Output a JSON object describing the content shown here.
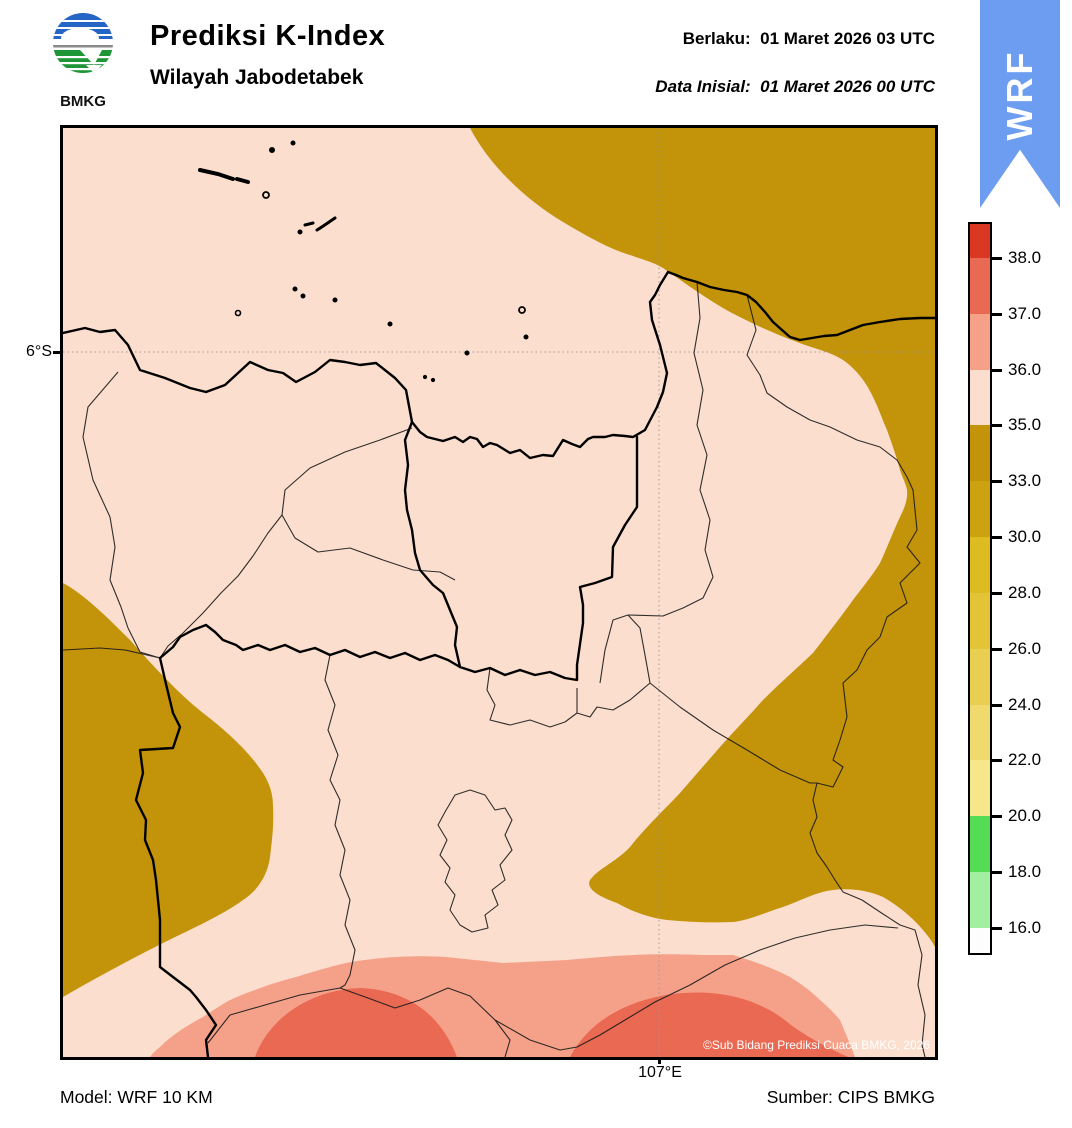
{
  "header": {
    "logo_text": "BMKG",
    "title": "Prediksi K-Index",
    "subtitle": "Wilayah Jabodetabek",
    "valid_label": "Berlaku:",
    "valid_value": "01 Maret 2026 03 UTC",
    "init_label": "Data Inisial:",
    "init_value": "01 Maret 2026 00 UTC",
    "ribbon_text": "WRF"
  },
  "map": {
    "lat_label": "6°S",
    "lon_label": "107°E",
    "copyright": "©Sub Bidang Prediksi Cuaca BMKG, 2026",
    "colors": {
      "background_35_36": "#FBDECD",
      "gold_33_35": "#C3930A",
      "salmon_36_37": "#F5A189",
      "red_37_38": "#E96952",
      "coastline": "#000000",
      "admin_thin": "#1a1a1a",
      "gridline": "#999999"
    }
  },
  "colorbar": {
    "labels": [
      "38.0",
      "37.0",
      "36.0",
      "35.0",
      "33.0",
      "30.0",
      "28.0",
      "26.0",
      "24.0",
      "22.0",
      "20.0",
      "18.0",
      "16.0"
    ],
    "colors": [
      "#DA3823",
      "#E96952",
      "#F5A189",
      "#FBDECD",
      "#C3930A",
      "#CDA211",
      "#DCBC20",
      "#E3C437",
      "#EACE52",
      "#F0DA6E",
      "#F6E78B",
      "#55DC55",
      "#A2EFA2",
      "#FDFDFD"
    ]
  },
  "footer": {
    "model": "Model: WRF 10 KM",
    "source": "Sumber: CIPS BMKG"
  },
  "chart_data": {
    "type": "heatmap",
    "title": "Prediksi K-Index",
    "region": "Wilayah Jabodetabek",
    "valid_time": "01 Maret 2026 03 UTC",
    "init_time": "01 Maret 2026 00 UTC",
    "model": "WRF 10 KM",
    "source": "CIPS BMKG",
    "colorbar_levels": [
      16,
      18,
      20,
      22,
      24,
      26,
      28,
      30,
      33,
      35,
      36,
      37,
      38
    ],
    "gridlines": {
      "lat": "6°S",
      "lon": "107°E"
    },
    "field_summary": [
      "Most of domain (Jakarta bay, Jakarta, Tangerang, Bekasi, Depok, north Bogor): K-Index 35-36 (light pink)",
      "Large 33-35 (dark gold) region over northeast sea corner extending down entire eastern flank (Karawang side) with lobe reaching west to ~107E near 6.6S",
      "33-35 (dark gold) blob on western edge (Banten foothills) between ~6.4S and ~6.8S",
      "36-37 (salmon) band along entire southern edge (Bogor mountains)",
      "Two 37-38 (red) cores embedded in southern band near bottom boundary, southwest and south-center of domain"
    ]
  }
}
